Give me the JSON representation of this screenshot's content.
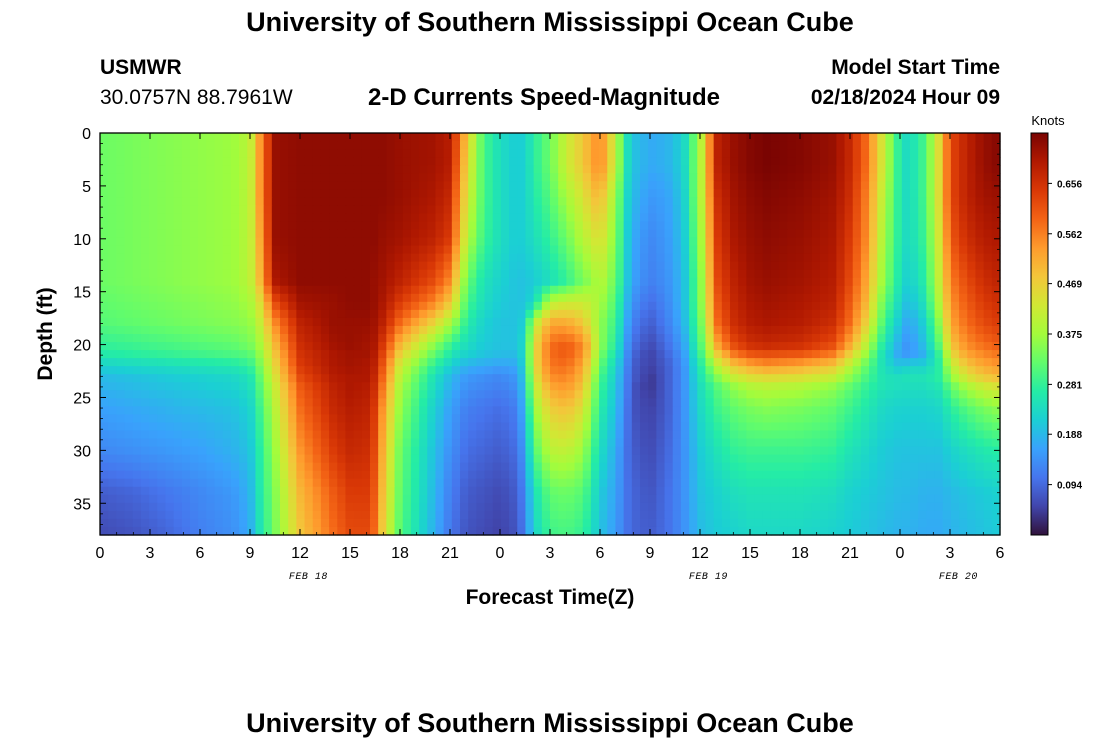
{
  "header": {
    "title": "University of Southern Mississippi Ocean Cube",
    "station": "USMWR",
    "coordinates": "30.0757N  88.7961W",
    "chart_title": "2-D Currents Speed-Magnitude",
    "model_start_label": "Model Start Time",
    "model_start_value": "02/18/2024 Hour 09"
  },
  "footer": {
    "title": "University of Southern Mississippi Ocean Cube"
  },
  "chart_data": {
    "type": "heatmap",
    "title": "2-D Currents Speed-Magnitude",
    "xlabel": "Forecast Time(Z)",
    "ylabel": "Depth (ft)",
    "x_tick_labels": [
      "0",
      "3",
      "6",
      "9",
      "12",
      "15",
      "18",
      "21",
      "0",
      "3",
      "6",
      "9",
      "12",
      "15",
      "18",
      "21",
      "0",
      "3",
      "6"
    ],
    "x_hours": [
      0,
      3,
      6,
      9,
      12,
      15,
      18,
      21,
      24,
      27,
      30,
      33,
      36,
      39,
      42,
      45,
      48,
      51,
      54
    ],
    "date_labels": [
      {
        "label": "FEB 18",
        "hour": 12.5
      },
      {
        "label": "FEB 19",
        "hour": 36.5
      },
      {
        "label": "FEB 20",
        "hour": 51.5
      }
    ],
    "y_ticks": [
      0,
      5,
      10,
      15,
      20,
      25,
      30,
      35
    ],
    "ylim": [
      0,
      38
    ],
    "xlim": [
      0,
      54
    ],
    "colorbar": {
      "label": "Knots",
      "ticks": [
        0.094,
        0.188,
        0.281,
        0.375,
        0.469,
        0.562,
        0.656
      ],
      "range": [
        0.0,
        0.75
      ],
      "colors": [
        "#30123b",
        "#4145ab",
        "#4675ed",
        "#39a2fc",
        "#1bcfd4",
        "#24eca6",
        "#61fc6c",
        "#a4fc3b",
        "#d1e834",
        "#f3c63a",
        "#fe9b2d",
        "#f36315",
        "#d93806",
        "#b11901",
        "#7a0402"
      ]
    },
    "depths": [
      0,
      3,
      6,
      10,
      14,
      16,
      18,
      20,
      21,
      22,
      23,
      24,
      26,
      30,
      34,
      38
    ],
    "times": [
      0,
      2,
      4,
      6,
      8,
      9,
      9.5,
      10.5,
      12,
      14,
      15,
      16,
      16.5,
      17,
      18,
      20,
      21,
      21.5,
      22,
      23,
      24,
      25,
      25.5,
      26,
      27,
      28,
      29,
      29.5,
      30,
      31,
      31.5,
      32,
      33,
      34,
      35,
      36,
      37,
      38,
      39,
      40,
      42,
      44,
      45,
      46,
      47,
      48,
      48.5,
      49.5,
      50.5,
      51,
      52,
      53,
      54
    ],
    "values": [
      [
        0.33,
        0.34,
        0.35,
        0.36,
        0.37,
        0.4,
        0.52,
        0.72,
        0.73,
        0.73,
        0.73,
        0.73,
        0.73,
        0.73,
        0.72,
        0.71,
        0.69,
        0.6,
        0.48,
        0.3,
        0.24,
        0.21,
        0.22,
        0.27,
        0.33,
        0.42,
        0.48,
        0.52,
        0.56,
        0.4,
        0.26,
        0.2,
        0.17,
        0.18,
        0.22,
        0.38,
        0.68,
        0.72,
        0.74,
        0.75,
        0.74,
        0.72,
        0.67,
        0.58,
        0.42,
        0.26,
        0.23,
        0.3,
        0.48,
        0.62,
        0.68,
        0.72,
        0.74,
        0.74
      ],
      [
        0.33,
        0.34,
        0.35,
        0.36,
        0.37,
        0.4,
        0.52,
        0.72,
        0.73,
        0.73,
        0.73,
        0.73,
        0.73,
        0.73,
        0.72,
        0.71,
        0.69,
        0.58,
        0.46,
        0.3,
        0.24,
        0.21,
        0.22,
        0.27,
        0.33,
        0.42,
        0.48,
        0.52,
        0.56,
        0.4,
        0.26,
        0.2,
        0.17,
        0.18,
        0.22,
        0.38,
        0.68,
        0.72,
        0.74,
        0.75,
        0.74,
        0.72,
        0.67,
        0.58,
        0.42,
        0.26,
        0.23,
        0.3,
        0.48,
        0.62,
        0.68,
        0.72,
        0.74,
        0.74
      ],
      [
        0.33,
        0.34,
        0.35,
        0.36,
        0.37,
        0.4,
        0.52,
        0.72,
        0.73,
        0.73,
        0.73,
        0.73,
        0.73,
        0.73,
        0.72,
        0.7,
        0.67,
        0.55,
        0.44,
        0.3,
        0.24,
        0.21,
        0.22,
        0.26,
        0.31,
        0.38,
        0.44,
        0.48,
        0.5,
        0.36,
        0.24,
        0.19,
        0.15,
        0.16,
        0.21,
        0.38,
        0.66,
        0.71,
        0.73,
        0.74,
        0.73,
        0.71,
        0.66,
        0.56,
        0.4,
        0.26,
        0.23,
        0.3,
        0.48,
        0.62,
        0.68,
        0.71,
        0.72,
        0.73
      ],
      [
        0.33,
        0.34,
        0.35,
        0.36,
        0.37,
        0.4,
        0.5,
        0.72,
        0.73,
        0.73,
        0.73,
        0.73,
        0.73,
        0.72,
        0.71,
        0.68,
        0.64,
        0.52,
        0.4,
        0.29,
        0.24,
        0.21,
        0.22,
        0.24,
        0.28,
        0.33,
        0.4,
        0.42,
        0.45,
        0.34,
        0.23,
        0.17,
        0.13,
        0.15,
        0.2,
        0.36,
        0.64,
        0.7,
        0.72,
        0.73,
        0.72,
        0.7,
        0.64,
        0.55,
        0.38,
        0.26,
        0.23,
        0.29,
        0.46,
        0.6,
        0.66,
        0.69,
        0.7,
        0.71
      ],
      [
        0.33,
        0.34,
        0.35,
        0.36,
        0.37,
        0.4,
        0.48,
        0.7,
        0.73,
        0.73,
        0.73,
        0.73,
        0.72,
        0.71,
        0.68,
        0.62,
        0.55,
        0.44,
        0.33,
        0.25,
        0.22,
        0.2,
        0.2,
        0.21,
        0.24,
        0.28,
        0.34,
        0.36,
        0.4,
        0.32,
        0.22,
        0.16,
        0.12,
        0.14,
        0.19,
        0.34,
        0.62,
        0.68,
        0.71,
        0.72,
        0.71,
        0.69,
        0.62,
        0.52,
        0.36,
        0.25,
        0.21,
        0.27,
        0.44,
        0.56,
        0.62,
        0.66,
        0.68,
        0.7
      ],
      [
        0.32,
        0.33,
        0.34,
        0.35,
        0.36,
        0.38,
        0.43,
        0.62,
        0.71,
        0.72,
        0.73,
        0.73,
        0.72,
        0.7,
        0.64,
        0.56,
        0.48,
        0.4,
        0.3,
        0.24,
        0.21,
        0.2,
        0.2,
        0.23,
        0.4,
        0.42,
        0.42,
        0.4,
        0.38,
        0.3,
        0.2,
        0.14,
        0.1,
        0.13,
        0.19,
        0.34,
        0.6,
        0.67,
        0.7,
        0.71,
        0.7,
        0.68,
        0.6,
        0.5,
        0.33,
        0.23,
        0.19,
        0.25,
        0.42,
        0.54,
        0.6,
        0.64,
        0.66,
        0.68
      ],
      [
        0.31,
        0.32,
        0.33,
        0.34,
        0.35,
        0.36,
        0.4,
        0.55,
        0.68,
        0.72,
        0.72,
        0.72,
        0.71,
        0.68,
        0.58,
        0.46,
        0.38,
        0.33,
        0.27,
        0.22,
        0.2,
        0.2,
        0.22,
        0.4,
        0.52,
        0.52,
        0.48,
        0.42,
        0.36,
        0.28,
        0.18,
        0.12,
        0.08,
        0.12,
        0.18,
        0.32,
        0.58,
        0.66,
        0.69,
        0.7,
        0.69,
        0.66,
        0.58,
        0.46,
        0.3,
        0.2,
        0.16,
        0.22,
        0.38,
        0.52,
        0.58,
        0.62,
        0.64,
        0.66
      ],
      [
        0.28,
        0.29,
        0.3,
        0.31,
        0.32,
        0.34,
        0.37,
        0.5,
        0.66,
        0.71,
        0.72,
        0.71,
        0.7,
        0.64,
        0.5,
        0.36,
        0.29,
        0.26,
        0.24,
        0.21,
        0.2,
        0.2,
        0.24,
        0.44,
        0.58,
        0.6,
        0.55,
        0.46,
        0.36,
        0.26,
        0.16,
        0.1,
        0.06,
        0.1,
        0.16,
        0.3,
        0.52,
        0.62,
        0.66,
        0.67,
        0.66,
        0.62,
        0.52,
        0.4,
        0.26,
        0.17,
        0.14,
        0.2,
        0.34,
        0.48,
        0.55,
        0.58,
        0.6,
        0.62
      ],
      [
        0.26,
        0.27,
        0.28,
        0.29,
        0.3,
        0.31,
        0.35,
        0.48,
        0.65,
        0.7,
        0.71,
        0.71,
        0.69,
        0.62,
        0.46,
        0.32,
        0.26,
        0.23,
        0.22,
        0.2,
        0.19,
        0.19,
        0.24,
        0.44,
        0.58,
        0.6,
        0.54,
        0.44,
        0.34,
        0.24,
        0.15,
        0.09,
        0.05,
        0.09,
        0.15,
        0.28,
        0.46,
        0.56,
        0.6,
        0.61,
        0.6,
        0.56,
        0.46,
        0.36,
        0.24,
        0.16,
        0.15,
        0.18,
        0.3,
        0.44,
        0.52,
        0.55,
        0.57,
        0.58
      ],
      [
        0.22,
        0.23,
        0.24,
        0.25,
        0.26,
        0.28,
        0.33,
        0.46,
        0.64,
        0.7,
        0.71,
        0.7,
        0.68,
        0.6,
        0.42,
        0.28,
        0.22,
        0.2,
        0.18,
        0.17,
        0.16,
        0.17,
        0.23,
        0.44,
        0.57,
        0.58,
        0.52,
        0.42,
        0.32,
        0.22,
        0.14,
        0.08,
        0.05,
        0.08,
        0.14,
        0.26,
        0.4,
        0.48,
        0.52,
        0.54,
        0.52,
        0.48,
        0.4,
        0.32,
        0.24,
        0.2,
        0.22,
        0.22,
        0.28,
        0.4,
        0.48,
        0.52,
        0.54,
        0.55
      ],
      [
        0.19,
        0.2,
        0.21,
        0.22,
        0.23,
        0.25,
        0.31,
        0.44,
        0.62,
        0.69,
        0.7,
        0.7,
        0.67,
        0.58,
        0.4,
        0.25,
        0.19,
        0.17,
        0.15,
        0.14,
        0.13,
        0.15,
        0.22,
        0.42,
        0.55,
        0.56,
        0.5,
        0.4,
        0.3,
        0.21,
        0.13,
        0.08,
        0.04,
        0.08,
        0.14,
        0.25,
        0.35,
        0.42,
        0.45,
        0.46,
        0.45,
        0.42,
        0.36,
        0.3,
        0.25,
        0.24,
        0.25,
        0.25,
        0.28,
        0.36,
        0.44,
        0.48,
        0.5,
        0.5
      ],
      [
        0.18,
        0.19,
        0.2,
        0.21,
        0.22,
        0.24,
        0.3,
        0.42,
        0.6,
        0.68,
        0.7,
        0.69,
        0.66,
        0.56,
        0.38,
        0.24,
        0.18,
        0.16,
        0.14,
        0.13,
        0.12,
        0.14,
        0.21,
        0.4,
        0.52,
        0.54,
        0.48,
        0.38,
        0.29,
        0.2,
        0.13,
        0.07,
        0.04,
        0.08,
        0.14,
        0.24,
        0.31,
        0.36,
        0.39,
        0.4,
        0.39,
        0.36,
        0.32,
        0.28,
        0.25,
        0.24,
        0.24,
        0.24,
        0.26,
        0.32,
        0.38,
        0.42,
        0.44,
        0.44
      ],
      [
        0.16,
        0.17,
        0.18,
        0.19,
        0.2,
        0.22,
        0.28,
        0.4,
        0.58,
        0.67,
        0.69,
        0.68,
        0.64,
        0.53,
        0.36,
        0.22,
        0.16,
        0.14,
        0.12,
        0.11,
        0.1,
        0.12,
        0.19,
        0.36,
        0.47,
        0.49,
        0.44,
        0.35,
        0.27,
        0.19,
        0.12,
        0.07,
        0.05,
        0.08,
        0.14,
        0.23,
        0.29,
        0.32,
        0.34,
        0.35,
        0.34,
        0.32,
        0.29,
        0.26,
        0.23,
        0.22,
        0.22,
        0.22,
        0.23,
        0.27,
        0.31,
        0.34,
        0.36,
        0.37
      ],
      [
        0.13,
        0.14,
        0.15,
        0.16,
        0.18,
        0.2,
        0.26,
        0.37,
        0.54,
        0.64,
        0.67,
        0.66,
        0.62,
        0.5,
        0.33,
        0.2,
        0.14,
        0.12,
        0.1,
        0.09,
        0.08,
        0.1,
        0.16,
        0.3,
        0.4,
        0.41,
        0.37,
        0.3,
        0.24,
        0.17,
        0.11,
        0.08,
        0.06,
        0.09,
        0.14,
        0.21,
        0.25,
        0.28,
        0.29,
        0.29,
        0.29,
        0.28,
        0.25,
        0.23,
        0.21,
        0.2,
        0.2,
        0.2,
        0.2,
        0.22,
        0.24,
        0.26,
        0.27,
        0.28
      ],
      [
        0.08,
        0.09,
        0.11,
        0.13,
        0.15,
        0.18,
        0.25,
        0.35,
        0.5,
        0.6,
        0.64,
        0.64,
        0.6,
        0.48,
        0.32,
        0.19,
        0.12,
        0.1,
        0.08,
        0.07,
        0.06,
        0.08,
        0.13,
        0.24,
        0.32,
        0.33,
        0.31,
        0.26,
        0.21,
        0.16,
        0.11,
        0.09,
        0.07,
        0.1,
        0.14,
        0.2,
        0.22,
        0.24,
        0.25,
        0.25,
        0.25,
        0.24,
        0.22,
        0.21,
        0.2,
        0.19,
        0.19,
        0.18,
        0.18,
        0.19,
        0.2,
        0.21,
        0.22,
        0.23
      ],
      [
        0.06,
        0.07,
        0.09,
        0.12,
        0.14,
        0.17,
        0.24,
        0.34,
        0.48,
        0.58,
        0.62,
        0.62,
        0.58,
        0.46,
        0.31,
        0.18,
        0.11,
        0.09,
        0.07,
        0.06,
        0.05,
        0.07,
        0.12,
        0.22,
        0.29,
        0.3,
        0.28,
        0.24,
        0.2,
        0.15,
        0.11,
        0.09,
        0.08,
        0.1,
        0.14,
        0.19,
        0.21,
        0.22,
        0.23,
        0.23,
        0.23,
        0.22,
        0.21,
        0.2,
        0.19,
        0.18,
        0.18,
        0.17,
        0.17,
        0.18,
        0.19,
        0.2,
        0.21,
        0.21
      ]
    ]
  }
}
